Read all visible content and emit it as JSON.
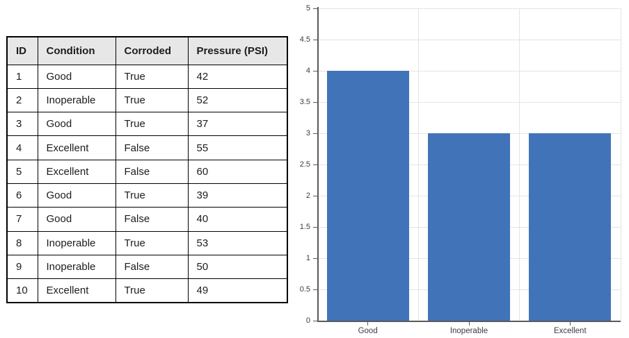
{
  "table": {
    "columns": [
      "ID",
      "Condition",
      "Corroded",
      "Pressure (PSI)"
    ],
    "rows": [
      [
        "1",
        "Good",
        "True",
        "42"
      ],
      [
        "2",
        "Inoperable",
        "True",
        "52"
      ],
      [
        "3",
        "Good",
        "True",
        "37"
      ],
      [
        "4",
        "Excellent",
        "False",
        "55"
      ],
      [
        "5",
        "Excellent",
        "False",
        "60"
      ],
      [
        "6",
        "Good",
        "True",
        "39"
      ],
      [
        "7",
        "Good",
        "False",
        "40"
      ],
      [
        "8",
        "Inoperable",
        "True",
        "53"
      ],
      [
        "9",
        "Inoperable",
        "False",
        "50"
      ],
      [
        "10",
        "Excellent",
        "True",
        "49"
      ]
    ],
    "header_bg": "#e7e7e7",
    "border_color": "#000000",
    "text_color": "#1c1c1c"
  },
  "chart_data": {
    "type": "bar",
    "categories": [
      "Good",
      "Inoperable",
      "Excellent"
    ],
    "values": [
      4,
      3,
      3
    ],
    "title": "",
    "xlabel": "",
    "ylabel": "",
    "ylim": [
      0,
      5
    ],
    "ytick_step": 0.5,
    "yticks": [
      "0",
      "0.5",
      "1",
      "1.5",
      "2",
      "2.5",
      "3",
      "3.5",
      "4",
      "4.5",
      "5"
    ],
    "grid": true,
    "legend": "none",
    "bar_color": "#4173b9",
    "gridline_color": "#e4e4e4",
    "axis_color": "#59595b",
    "tick_label_color": "#3c3c3c"
  }
}
